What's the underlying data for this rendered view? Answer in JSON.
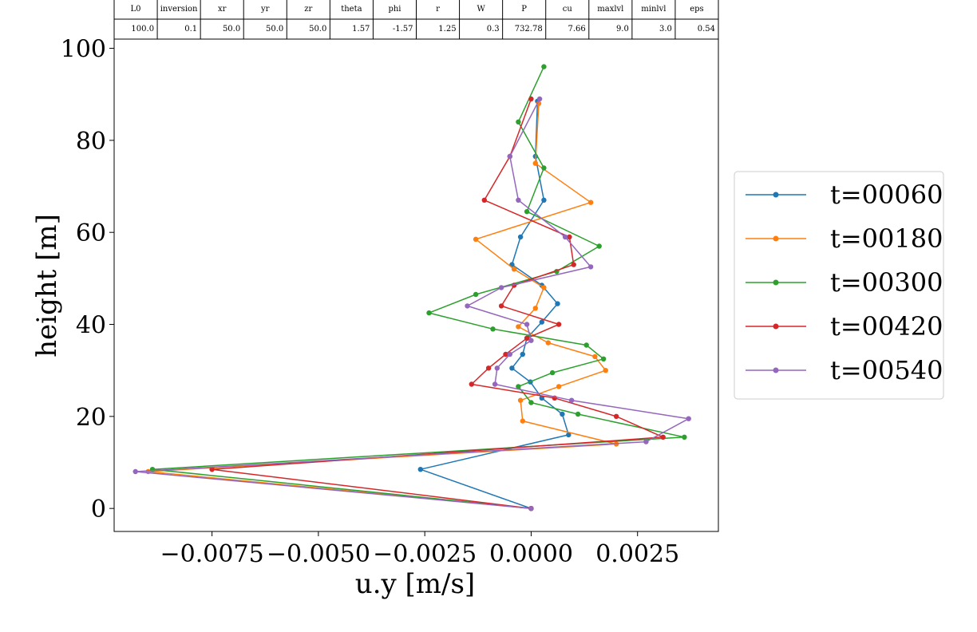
{
  "table": {
    "headers": [
      "L0",
      "inversion",
      "xr",
      "yr",
      "zr",
      "theta",
      "phi",
      "r",
      "W",
      "P",
      "cu",
      "maxlvl",
      "minlvl",
      "eps"
    ],
    "values": [
      "100.0",
      "0.1",
      "50.0",
      "50.0",
      "50.0",
      "1.57",
      "-1.57",
      "1.25",
      "0.3",
      "732.78",
      "7.66",
      "9.0",
      "3.0",
      "0.54"
    ]
  },
  "chart_data": {
    "type": "line",
    "xlabel": "u.y [m/s]",
    "ylabel": "height [m]",
    "xlim": [
      -0.0098,
      0.0044
    ],
    "ylim": [
      -5,
      102
    ],
    "xticks": [
      -0.0075,
      -0.005,
      -0.0025,
      0.0,
      0.0025
    ],
    "xtick_labels": [
      "−0.0075",
      "−0.0050",
      "−0.0025",
      "0.0000",
      "0.0025"
    ],
    "yticks": [
      0,
      20,
      40,
      60,
      80,
      100
    ],
    "ytick_labels": [
      "0",
      "20",
      "40",
      "60",
      "80",
      "100"
    ],
    "legend_position": "outside-right",
    "grid": false,
    "series": [
      {
        "name": "t=00060",
        "color": "#1f77b4",
        "points": [
          [
            0.0,
            0.0
          ],
          [
            -0.0026,
            8.5
          ],
          [
            0.00088,
            16.0
          ],
          [
            0.00073,
            20.5
          ],
          [
            0.00025,
            24.0
          ],
          [
            -2e-05,
            27.5
          ],
          [
            -0.00045,
            30.5
          ],
          [
            -0.0002,
            33.5
          ],
          [
            -0.0001,
            37.0
          ],
          [
            0.00025,
            40.5
          ],
          [
            0.00062,
            44.5
          ],
          [
            0.00025,
            48.5
          ],
          [
            -0.00045,
            53.0
          ],
          [
            -0.00025,
            59.0
          ],
          [
            0.0003,
            67.0
          ],
          [
            0.0001,
            76.5
          ],
          [
            0.00015,
            88.5
          ]
        ]
      },
      {
        "name": "t=00180",
        "color": "#ff7f0e",
        "points": [
          [
            0.0,
            0.0
          ],
          [
            -0.009,
            8.0
          ],
          [
            0.002,
            14.0
          ],
          [
            -0.0002,
            19.0
          ],
          [
            -0.00025,
            23.5
          ],
          [
            0.00065,
            26.5
          ],
          [
            0.00175,
            30.0
          ],
          [
            0.0015,
            33.0
          ],
          [
            0.0004,
            36.0
          ],
          [
            -0.0003,
            39.5
          ],
          [
            0.0001,
            43.5
          ],
          [
            0.0003,
            48.0
          ],
          [
            -0.0004,
            52.0
          ],
          [
            -0.0013,
            58.5
          ],
          [
            0.0014,
            66.5
          ],
          [
            0.0001,
            75.0
          ],
          [
            0.00018,
            88.0
          ]
        ]
      },
      {
        "name": "t=00300",
        "color": "#2ca02c",
        "points": [
          [
            0.0,
            0.0
          ],
          [
            -0.0089,
            8.5
          ],
          [
            0.0036,
            15.5
          ],
          [
            0.0011,
            20.5
          ],
          [
            0.0,
            23.0
          ],
          [
            -0.0003,
            26.5
          ],
          [
            0.0005,
            29.5
          ],
          [
            0.0017,
            32.5
          ],
          [
            0.0013,
            35.5
          ],
          [
            -0.0009,
            39.0
          ],
          [
            -0.0024,
            42.5
          ],
          [
            -0.0013,
            46.5
          ],
          [
            0.0006,
            51.5
          ],
          [
            0.0016,
            57.0
          ],
          [
            -0.0001,
            64.5
          ],
          [
            0.0003,
            74.0
          ],
          [
            -0.0003,
            84.0
          ],
          [
            0.0003,
            96.0
          ]
        ]
      },
      {
        "name": "t=00420",
        "color": "#d62728",
        "points": [
          [
            0.0,
            0.0
          ],
          [
            -0.0075,
            8.5
          ],
          [
            0.0031,
            15.5
          ],
          [
            0.002,
            20.0
          ],
          [
            0.00055,
            24.0
          ],
          [
            -0.0014,
            27.0
          ],
          [
            -0.001,
            30.5
          ],
          [
            -0.0006,
            33.5
          ],
          [
            -0.0001,
            37.0
          ],
          [
            0.00065,
            40.0
          ],
          [
            -0.0007,
            44.0
          ],
          [
            -0.0004,
            48.5
          ],
          [
            0.001,
            53.0
          ],
          [
            0.0009,
            59.0
          ],
          [
            -0.0011,
            67.0
          ],
          [
            -0.0005,
            76.5
          ],
          [
            0.0,
            89.0
          ]
        ]
      },
      {
        "name": "t=00540",
        "color": "#9467bd",
        "points": [
          [
            0.0,
            0.0
          ],
          [
            -0.0093,
            8.0
          ],
          [
            0.0027,
            14.5
          ],
          [
            0.0037,
            19.5
          ],
          [
            0.00095,
            23.5
          ],
          [
            -0.00085,
            27.0
          ],
          [
            -0.0008,
            30.5
          ],
          [
            -0.0005,
            33.5
          ],
          [
            0.0,
            36.5
          ],
          [
            -0.0001,
            40.0
          ],
          [
            -0.0015,
            44.0
          ],
          [
            -0.0007,
            48.0
          ],
          [
            0.0014,
            52.5
          ],
          [
            0.0008,
            59.0
          ],
          [
            -0.0003,
            67.0
          ],
          [
            -0.0005,
            76.5
          ],
          [
            0.0002,
            89.0
          ]
        ]
      }
    ]
  }
}
